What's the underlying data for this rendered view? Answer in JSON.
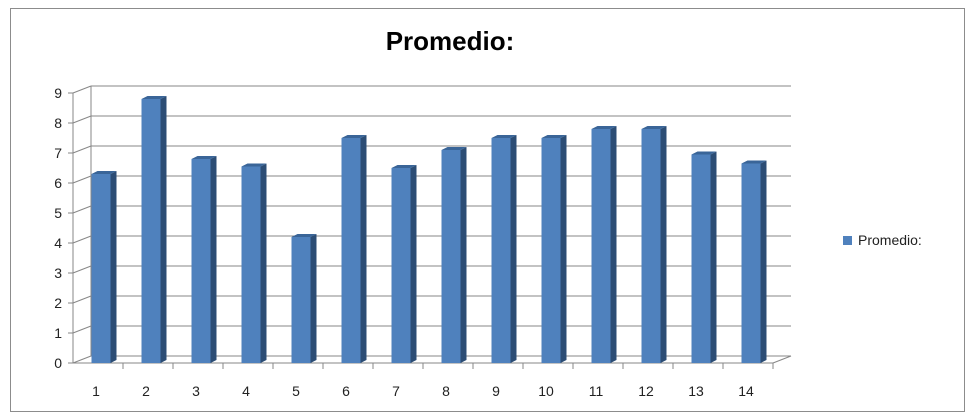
{
  "chart_data": {
    "type": "bar",
    "title": "Promedio:",
    "categories": [
      "1",
      "2",
      "3",
      "4",
      "5",
      "6",
      "7",
      "8",
      "9",
      "10",
      "11",
      "12",
      "13",
      "14"
    ],
    "series": [
      {
        "name": "Promedio:",
        "values": [
          6.3,
          8.8,
          6.8,
          6.55,
          4.2,
          7.5,
          6.5,
          7.1,
          7.5,
          7.5,
          7.8,
          7.8,
          6.95,
          6.65
        ]
      }
    ],
    "yticks": [
      "0",
      "1",
      "2",
      "3",
      "4",
      "5",
      "6",
      "7",
      "8",
      "9"
    ],
    "ylim": [
      0,
      9
    ],
    "grid": true,
    "legend_position": "right",
    "colors": {
      "bar_face": "#4f81bd",
      "bar_side": "#2c4d75",
      "bar_top": "#3a6598",
      "grid": "#878787"
    }
  }
}
